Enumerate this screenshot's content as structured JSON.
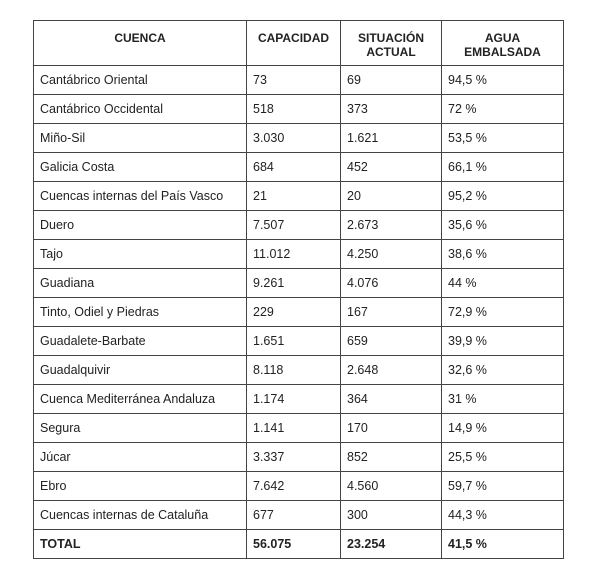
{
  "table": {
    "headers": [
      [
        "CUENCA"
      ],
      [
        "CAPACIDAD"
      ],
      [
        "SITUACIÓN",
        "ACTUAL"
      ],
      [
        "AGUA",
        "EMBALSADA"
      ]
    ],
    "rows": [
      [
        "Cantábrico Oriental",
        "73",
        "69",
        "94,5 %"
      ],
      [
        "Cantábrico Occidental",
        "518",
        "373",
        "72 %"
      ],
      [
        "Miño-Sil",
        "3.030",
        "1.621",
        "53,5 %"
      ],
      [
        "Galicia Costa",
        "684",
        "452",
        "66,1 %"
      ],
      [
        "Cuencas internas del País Vasco",
        "21",
        "20",
        "95,2 %"
      ],
      [
        "Duero",
        "7.507",
        "2.673",
        "35,6 %"
      ],
      [
        "Tajo",
        "11.012",
        "4.250",
        "38,6 %"
      ],
      [
        "Guadiana",
        "9.261",
        "4.076",
        "44 %"
      ],
      [
        "Tinto, Odiel y Piedras",
        "229",
        "167",
        "72,9 %"
      ],
      [
        "Guadalete-Barbate",
        "1.651",
        "659",
        "39,9 %"
      ],
      [
        "Guadalquivir",
        "8.118",
        "2.648",
        "32,6 %"
      ],
      [
        "Cuenca Mediterránea Andaluza",
        "1.174",
        "364",
        "31 %"
      ],
      [
        "Segura",
        "1.141",
        "170",
        "14,9 %"
      ],
      [
        "Júcar",
        "3.337",
        "852",
        "25,5 %"
      ],
      [
        "Ebro",
        "7.642",
        "4.560",
        "59,7 %"
      ],
      [
        "Cuencas internas de Cataluña",
        "677",
        "300",
        "44,3 %"
      ]
    ],
    "total": [
      "TOTAL",
      "56.075",
      "23.254",
      "41,5 %"
    ]
  }
}
